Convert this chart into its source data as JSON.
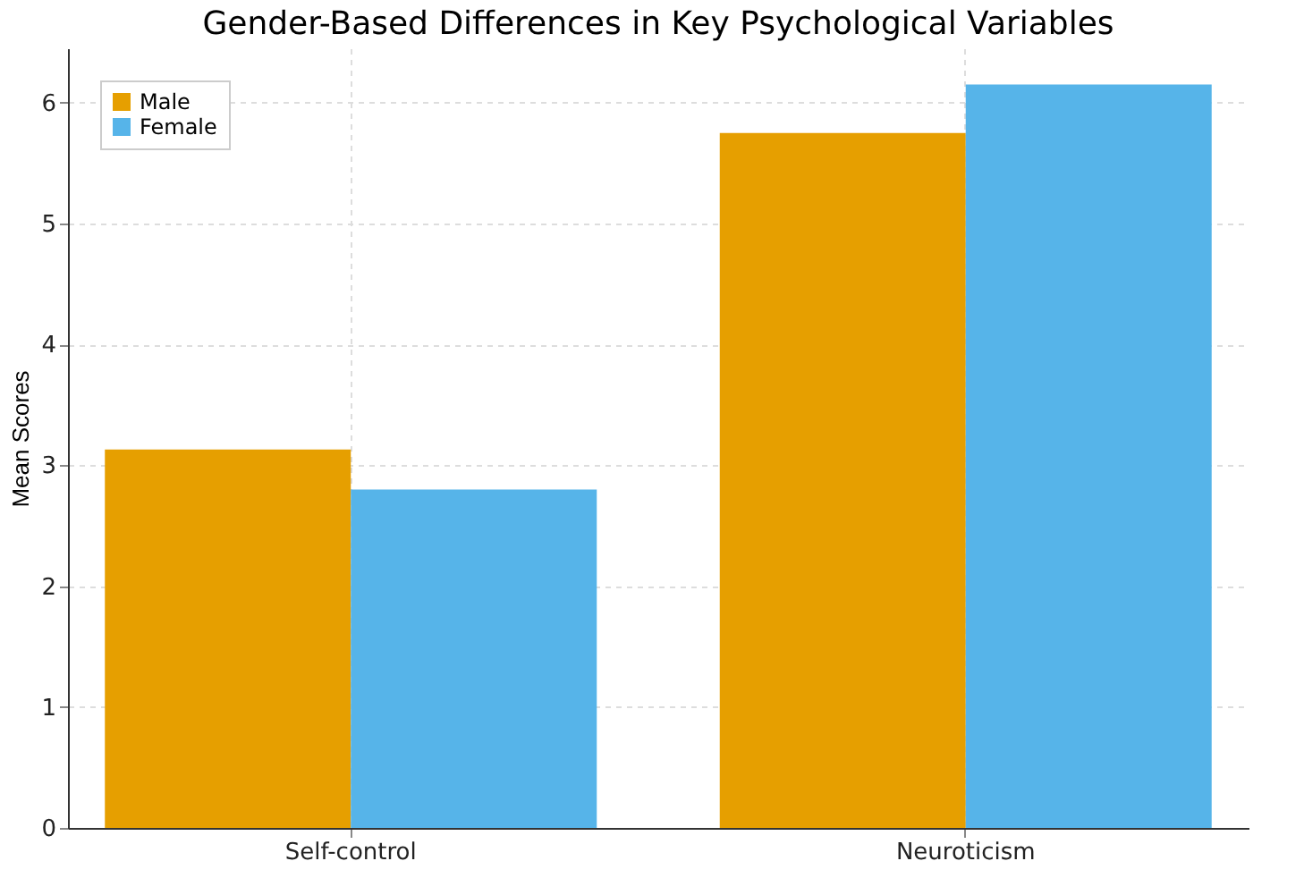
{
  "chart_data": {
    "type": "bar",
    "title": "Gender-Based Differences in Key Psychological Variables",
    "ylabel": "Mean Scores",
    "categories": [
      "Self-control",
      "Neuroticism"
    ],
    "series": [
      {
        "name": "Male",
        "color": "#e69f00",
        "values": [
          3.13,
          5.75
        ]
      },
      {
        "name": "Female",
        "color": "#56b4e9",
        "values": [
          2.8,
          6.15
        ]
      }
    ],
    "ylim": [
      0,
      6.45
    ],
    "yticks": [
      0,
      1,
      2,
      3,
      4,
      5,
      6
    ],
    "grid": true,
    "legend": "top left"
  }
}
